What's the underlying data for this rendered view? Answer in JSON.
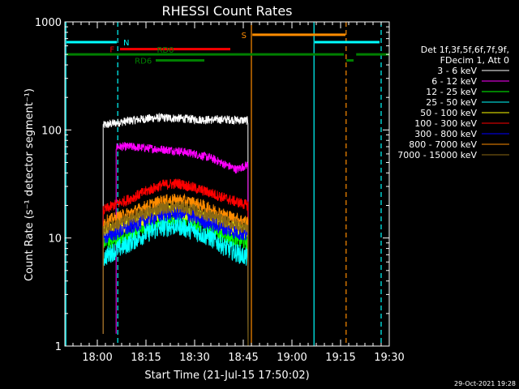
{
  "chart_data": {
    "type": "line",
    "title": "RHESSI Count Rates",
    "xlabel": "Start Time (21-Jul-15 17:50:02)",
    "ylabel": "Count Rate (s⁻¹ detector segment⁻¹)",
    "y_scale": "log",
    "ylim": [
      1,
      1000
    ],
    "x_unit": "minutes after 17:50:02",
    "xlim_minutes": [
      0,
      100
    ],
    "x_ticks": [
      {
        "label": "18:00",
        "minutes": 10
      },
      {
        "label": "18:15",
        "minutes": 25
      },
      {
        "label": "18:30",
        "minutes": 40
      },
      {
        "label": "18:45",
        "minutes": 55
      },
      {
        "label": "19:00",
        "minutes": 70
      },
      {
        "label": "19:15",
        "minutes": 85
      },
      {
        "label": "19:30",
        "minutes": 100
      }
    ],
    "y_ticks": [
      {
        "label": "1",
        "value": 1
      },
      {
        "label": "10",
        "value": 10
      },
      {
        "label": "100",
        "value": 100
      },
      {
        "label": "1000",
        "value": 1000
      }
    ],
    "legend_header": [
      "Det 1f,3f,5f,6f,7f,9f,",
      "FDecim 1, Att 0"
    ],
    "legend_position": "right",
    "series": [
      {
        "name": "3 - 6 keV",
        "color": "#ffffff",
        "start": 11.8,
        "end": 56.5,
        "x": [
          11.8,
          15,
          20,
          25,
          30,
          35,
          40,
          45,
          50,
          56.5
        ],
        "y": [
          110,
          115,
          122,
          127,
          130,
          128,
          125,
          124,
          125,
          122
        ],
        "noise": 0.04
      },
      {
        "name": "6 - 12 keV",
        "color": "#ff00ff",
        "start": 15.8,
        "end": 56.5,
        "x": [
          15.8,
          20,
          25,
          30,
          35,
          40,
          45,
          50,
          53,
          56.5
        ],
        "y": [
          70,
          70,
          68,
          66,
          64,
          60,
          55,
          47,
          43,
          48
        ],
        "noise": 0.04
      },
      {
        "name": "12 - 25 keV",
        "color": "#00ff00",
        "start": 11.8,
        "end": 56.5,
        "x": [
          11.8,
          15,
          20,
          25,
          30,
          35,
          40,
          45,
          50,
          56.5
        ],
        "y": [
          9,
          9.5,
          11,
          13,
          15,
          15.5,
          14,
          12,
          10.5,
          9
        ],
        "noise": 0.08
      },
      {
        "name": "25 - 50 keV",
        "color": "#00ffff",
        "start": 11.8,
        "end": 56.5,
        "x": [
          11.8,
          15,
          20,
          25,
          30,
          35,
          40,
          45,
          50,
          56.5
        ],
        "y": [
          6.5,
          7.5,
          9,
          11,
          12.5,
          13,
          11.5,
          10,
          8,
          6.5
        ],
        "noise": 0.09
      },
      {
        "name": "50 - 100 keV",
        "color": "#ffff00",
        "start": 11.8,
        "end": 56.5,
        "x": [
          11.8,
          15,
          20,
          25,
          30,
          35,
          40,
          45,
          50,
          56.5
        ],
        "y": [
          11,
          12,
          13.5,
          15.5,
          17,
          17.5,
          16,
          14.5,
          13,
          11.5
        ],
        "noise": 0.07
      },
      {
        "name": "100 - 300 keV",
        "color": "#ff0000",
        "start": 11.8,
        "end": 56.5,
        "x": [
          11.8,
          15,
          20,
          25,
          30,
          35,
          40,
          45,
          50,
          56.5
        ],
        "y": [
          18,
          20,
          23,
          27,
          31,
          32,
          29,
          26,
          23,
          20
        ],
        "noise": 0.05
      },
      {
        "name": "300 - 800 keV",
        "color": "#0000ff",
        "start": 11.8,
        "end": 56.5,
        "x": [
          11.8,
          15,
          20,
          25,
          30,
          35,
          40,
          45,
          50,
          56.5
        ],
        "y": [
          10,
          11,
          12.5,
          14.5,
          16.5,
          17,
          15.5,
          13.5,
          12,
          10.5
        ],
        "noise": 0.07
      },
      {
        "name": "800 - 7000 keV",
        "color": "#ff8c00",
        "start": 11.8,
        "end": 56.5,
        "x": [
          11.8,
          15,
          20,
          25,
          30,
          35,
          40,
          45,
          50,
          56.5
        ],
        "y": [
          14,
          15,
          17,
          19.5,
          22,
          22.5,
          21,
          18.5,
          16,
          14
        ],
        "noise": 0.06
      },
      {
        "name": "7000 - 15000 keV",
        "color": "#8b6914",
        "start": 11.8,
        "end": 56.5,
        "x": [
          11.8,
          15,
          20,
          25,
          30,
          35,
          40,
          45,
          50,
          56.5
        ],
        "y": [
          12,
          13,
          15,
          17,
          19,
          19.5,
          18,
          16,
          14,
          12.5
        ],
        "noise": 0.06
      }
    ],
    "vertical_lines": [
      {
        "minutes": 0.3,
        "color": "#00ffff",
        "style": "solid"
      },
      {
        "minutes": 16.3,
        "color": "#00ffff",
        "style": "dashed"
      },
      {
        "minutes": 57.5,
        "color": "#ff8c00",
        "style": "solid"
      },
      {
        "minutes": 76.8,
        "color": "#00ffff",
        "style": "solid"
      },
      {
        "minutes": 86.7,
        "color": "#ff8c00",
        "style": "dashed"
      },
      {
        "minutes": 97.5,
        "color": "#00ffff",
        "style": "dashed"
      }
    ],
    "flag_bars": [
      {
        "label": "N",
        "color": "#00ffff",
        "level": 650,
        "segments": [
          [
            0.5,
            16.0
          ],
          [
            77.0,
            97.0
          ]
        ],
        "label_side": "right",
        "label_minutes": 18.0
      },
      {
        "label": "S",
        "color": "#ff8c00",
        "level": 760,
        "segments": [
          [
            57.8,
            86.5
          ]
        ],
        "label_side": "left",
        "label_minutes": 56.0
      },
      {
        "label": "F",
        "color": "#ff0000",
        "level": 560,
        "segments": [
          [
            17.0,
            51.0
          ]
        ],
        "label_side": "left",
        "label_minutes": 15.3
      },
      {
        "label": "RD0",
        "color": "#008000",
        "level": 500,
        "segments": [
          [
            0.5,
            86.0
          ],
          [
            89.8,
            100.0
          ]
        ],
        "label_side": "center",
        "label_minutes": 31.0
      },
      {
        "label": "RD6",
        "color": "#008000",
        "level": 440,
        "segments": [
          [
            28.0,
            43.0
          ],
          [
            86.8,
            89.0
          ]
        ],
        "label_side": "left",
        "label_minutes": 26.8
      }
    ],
    "footer_date": "29-Oct-2021 19:28"
  }
}
